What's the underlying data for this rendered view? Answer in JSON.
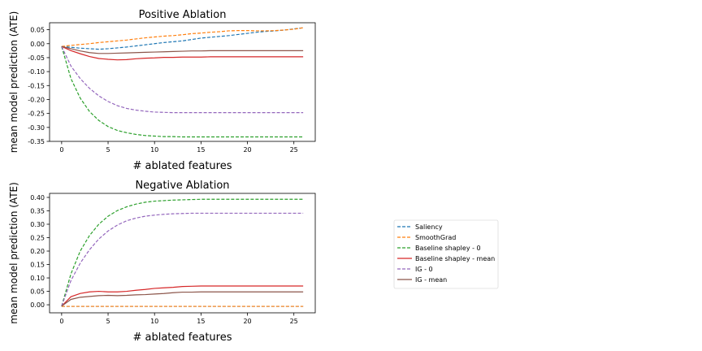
{
  "chart_data": [
    {
      "type": "line",
      "title": "Positive Ablation",
      "xlabel": "# ablated features",
      "ylabel": "mean model prediction (ATE)",
      "xlim": [
        -1.3,
        27.3
      ],
      "ylim": [
        -0.35,
        0.075
      ],
      "xticks": [
        0,
        5,
        10,
        15,
        20,
        25
      ],
      "xtick_labels": [
        "0",
        "5",
        "10",
        "15",
        "20",
        "25"
      ],
      "yticks": [
        0.05,
        0.0,
        -0.05,
        -0.1,
        -0.15,
        -0.2,
        -0.25,
        -0.3,
        -0.35
      ],
      "ytick_labels": [
        "0.05",
        "0.00",
        "-0.05",
        "-0.10",
        "-0.15",
        "-0.20",
        "-0.25",
        "-0.30",
        "-0.35"
      ],
      "grid": false,
      "x": [
        0,
        1,
        2,
        3,
        4,
        5,
        6,
        7,
        8,
        9,
        10,
        11,
        12,
        13,
        14,
        15,
        16,
        17,
        18,
        19,
        20,
        21,
        22,
        23,
        24,
        25,
        26
      ],
      "series": [
        {
          "name": "Saliency",
          "color": "#1f77b4",
          "dash": "dashed",
          "values": [
            -0.01,
            -0.013,
            -0.016,
            -0.018,
            -0.02,
            -0.018,
            -0.015,
            -0.012,
            -0.008,
            -0.004,
            0.0,
            0.004,
            0.007,
            0.01,
            0.015,
            0.02,
            0.023,
            0.026,
            0.029,
            0.033,
            0.037,
            0.041,
            0.044,
            0.046,
            0.049,
            0.053,
            0.057
          ]
        },
        {
          "name": "SmoothGrad",
          "color": "#ff7f0e",
          "dash": "dashed",
          "values": [
            -0.01,
            -0.006,
            -0.003,
            0.0,
            0.004,
            0.007,
            0.01,
            0.013,
            0.017,
            0.021,
            0.024,
            0.027,
            0.029,
            0.032,
            0.036,
            0.038,
            0.041,
            0.043,
            0.046,
            0.047,
            0.047,
            0.046,
            0.046,
            0.047,
            0.049,
            0.052,
            0.057
          ]
        },
        {
          "name": "Baseline shapley - 0",
          "color": "#2ca02c",
          "dash": "dashed",
          "values": [
            -0.01,
            -0.125,
            -0.195,
            -0.243,
            -0.275,
            -0.297,
            -0.311,
            -0.319,
            -0.325,
            -0.329,
            -0.331,
            -0.333,
            -0.333,
            -0.334,
            -0.334,
            -0.334,
            -0.334,
            -0.334,
            -0.334,
            -0.334,
            -0.334,
            -0.334,
            -0.334,
            -0.334,
            -0.334,
            -0.334,
            -0.334
          ]
        },
        {
          "name": "Baseline shapley - mean",
          "color": "#d62728",
          "dash": "solid",
          "values": [
            -0.01,
            -0.025,
            -0.036,
            -0.046,
            -0.053,
            -0.056,
            -0.058,
            -0.057,
            -0.054,
            -0.052,
            -0.051,
            -0.049,
            -0.049,
            -0.048,
            -0.048,
            -0.048,
            -0.047,
            -0.047,
            -0.047,
            -0.047,
            -0.047,
            -0.047,
            -0.047,
            -0.047,
            -0.047,
            -0.047,
            -0.047
          ]
        },
        {
          "name": "IG - 0",
          "color": "#9467bd",
          "dash": "dashed",
          "values": [
            -0.01,
            -0.08,
            -0.125,
            -0.16,
            -0.187,
            -0.207,
            -0.222,
            -0.232,
            -0.238,
            -0.242,
            -0.245,
            -0.246,
            -0.247,
            -0.247,
            -0.247,
            -0.247,
            -0.247,
            -0.247,
            -0.247,
            -0.247,
            -0.247,
            -0.247,
            -0.247,
            -0.247,
            -0.247,
            -0.247,
            -0.247
          ]
        },
        {
          "name": "IG - mean",
          "color": "#8c564b",
          "dash": "solid",
          "values": [
            -0.01,
            -0.018,
            -0.026,
            -0.032,
            -0.035,
            -0.035,
            -0.034,
            -0.033,
            -0.032,
            -0.031,
            -0.03,
            -0.029,
            -0.028,
            -0.027,
            -0.026,
            -0.026,
            -0.025,
            -0.025,
            -0.025,
            -0.025,
            -0.025,
            -0.025,
            -0.025,
            -0.025,
            -0.025,
            -0.025,
            -0.025
          ]
        }
      ]
    },
    {
      "type": "line",
      "title": "Negative Ablation",
      "xlabel": "# ablated features",
      "ylabel": "mean model prediction (ATE)",
      "xlim": [
        -1.3,
        27.3
      ],
      "ylim": [
        -0.03,
        0.415
      ],
      "xticks": [
        0,
        5,
        10,
        15,
        20,
        25
      ],
      "xtick_labels": [
        "0",
        "5",
        "10",
        "15",
        "20",
        "25"
      ],
      "yticks": [
        0.4,
        0.35,
        0.3,
        0.25,
        0.2,
        0.15,
        0.1,
        0.05,
        0.0
      ],
      "ytick_labels": [
        "0.40",
        "0.35",
        "0.30",
        "0.25",
        "0.20",
        "0.15",
        "0.10",
        "0.05",
        "0.00"
      ],
      "grid": false,
      "x": [
        0,
        1,
        2,
        3,
        4,
        5,
        6,
        7,
        8,
        9,
        10,
        11,
        12,
        13,
        14,
        15,
        16,
        17,
        18,
        19,
        20,
        21,
        22,
        23,
        24,
        25,
        26
      ],
      "series": [
        {
          "name": "Saliency",
          "color": "#1f77b4",
          "dash": "dashed",
          "values": [
            -0.006,
            -0.006,
            -0.006,
            -0.006,
            -0.006,
            -0.006,
            -0.006,
            -0.006,
            -0.006,
            -0.006,
            -0.006,
            -0.006,
            -0.006,
            -0.006,
            -0.006,
            -0.006,
            -0.006,
            -0.006,
            -0.006,
            -0.006,
            -0.006,
            -0.006,
            -0.006,
            -0.006,
            -0.006,
            -0.006,
            -0.006
          ]
        },
        {
          "name": "SmoothGrad",
          "color": "#ff7f0e",
          "dash": "dashed",
          "values": [
            -0.006,
            -0.006,
            -0.006,
            -0.006,
            -0.006,
            -0.006,
            -0.006,
            -0.006,
            -0.006,
            -0.006,
            -0.006,
            -0.006,
            -0.006,
            -0.006,
            -0.006,
            -0.006,
            -0.006,
            -0.006,
            -0.006,
            -0.006,
            -0.006,
            -0.006,
            -0.006,
            -0.006,
            -0.006,
            -0.006,
            -0.006
          ]
        },
        {
          "name": "Baseline shapley - 0",
          "color": "#2ca02c",
          "dash": "dashed",
          "values": [
            -0.005,
            0.115,
            0.2,
            0.258,
            0.3,
            0.33,
            0.351,
            0.365,
            0.375,
            0.382,
            0.386,
            0.388,
            0.39,
            0.391,
            0.392,
            0.393,
            0.393,
            0.393,
            0.393,
            0.393,
            0.393,
            0.393,
            0.393,
            0.393,
            0.393,
            0.393,
            0.393
          ]
        },
        {
          "name": "Baseline shapley - mean",
          "color": "#d62728",
          "dash": "solid",
          "values": [
            -0.005,
            0.03,
            0.042,
            0.048,
            0.05,
            0.048,
            0.048,
            0.05,
            0.054,
            0.057,
            0.061,
            0.063,
            0.065,
            0.068,
            0.069,
            0.07,
            0.07,
            0.07,
            0.07,
            0.07,
            0.07,
            0.07,
            0.07,
            0.07,
            0.07,
            0.07,
            0.07
          ]
        },
        {
          "name": "IG - 0",
          "color": "#9467bd",
          "dash": "dashed",
          "values": [
            -0.005,
            0.09,
            0.155,
            0.205,
            0.245,
            0.275,
            0.297,
            0.313,
            0.323,
            0.33,
            0.334,
            0.337,
            0.339,
            0.34,
            0.341,
            0.341,
            0.341,
            0.341,
            0.341,
            0.341,
            0.341,
            0.341,
            0.341,
            0.341,
            0.341,
            0.341,
            0.341
          ]
        },
        {
          "name": "IG - mean",
          "color": "#8c564b",
          "dash": "solid",
          "values": [
            -0.005,
            0.02,
            0.028,
            0.031,
            0.034,
            0.035,
            0.034,
            0.035,
            0.037,
            0.038,
            0.04,
            0.042,
            0.045,
            0.047,
            0.047,
            0.048,
            0.048,
            0.048,
            0.048,
            0.048,
            0.048,
            0.048,
            0.048,
            0.048,
            0.048,
            0.048,
            0.048
          ]
        }
      ]
    }
  ],
  "legend": {
    "placement": "right",
    "items": [
      {
        "label": "Saliency",
        "color": "#1f77b4",
        "dash": "dashed"
      },
      {
        "label": "SmoothGrad",
        "color": "#ff7f0e",
        "dash": "dashed"
      },
      {
        "label": "Baseline shapley - 0",
        "color": "#2ca02c",
        "dash": "dashed"
      },
      {
        "label": "Baseline shapley - mean",
        "color": "#d62728",
        "dash": "solid"
      },
      {
        "label": "IG - 0",
        "color": "#9467bd",
        "dash": "dashed"
      },
      {
        "label": "IG - mean",
        "color": "#8c564b",
        "dash": "solid"
      }
    ]
  }
}
